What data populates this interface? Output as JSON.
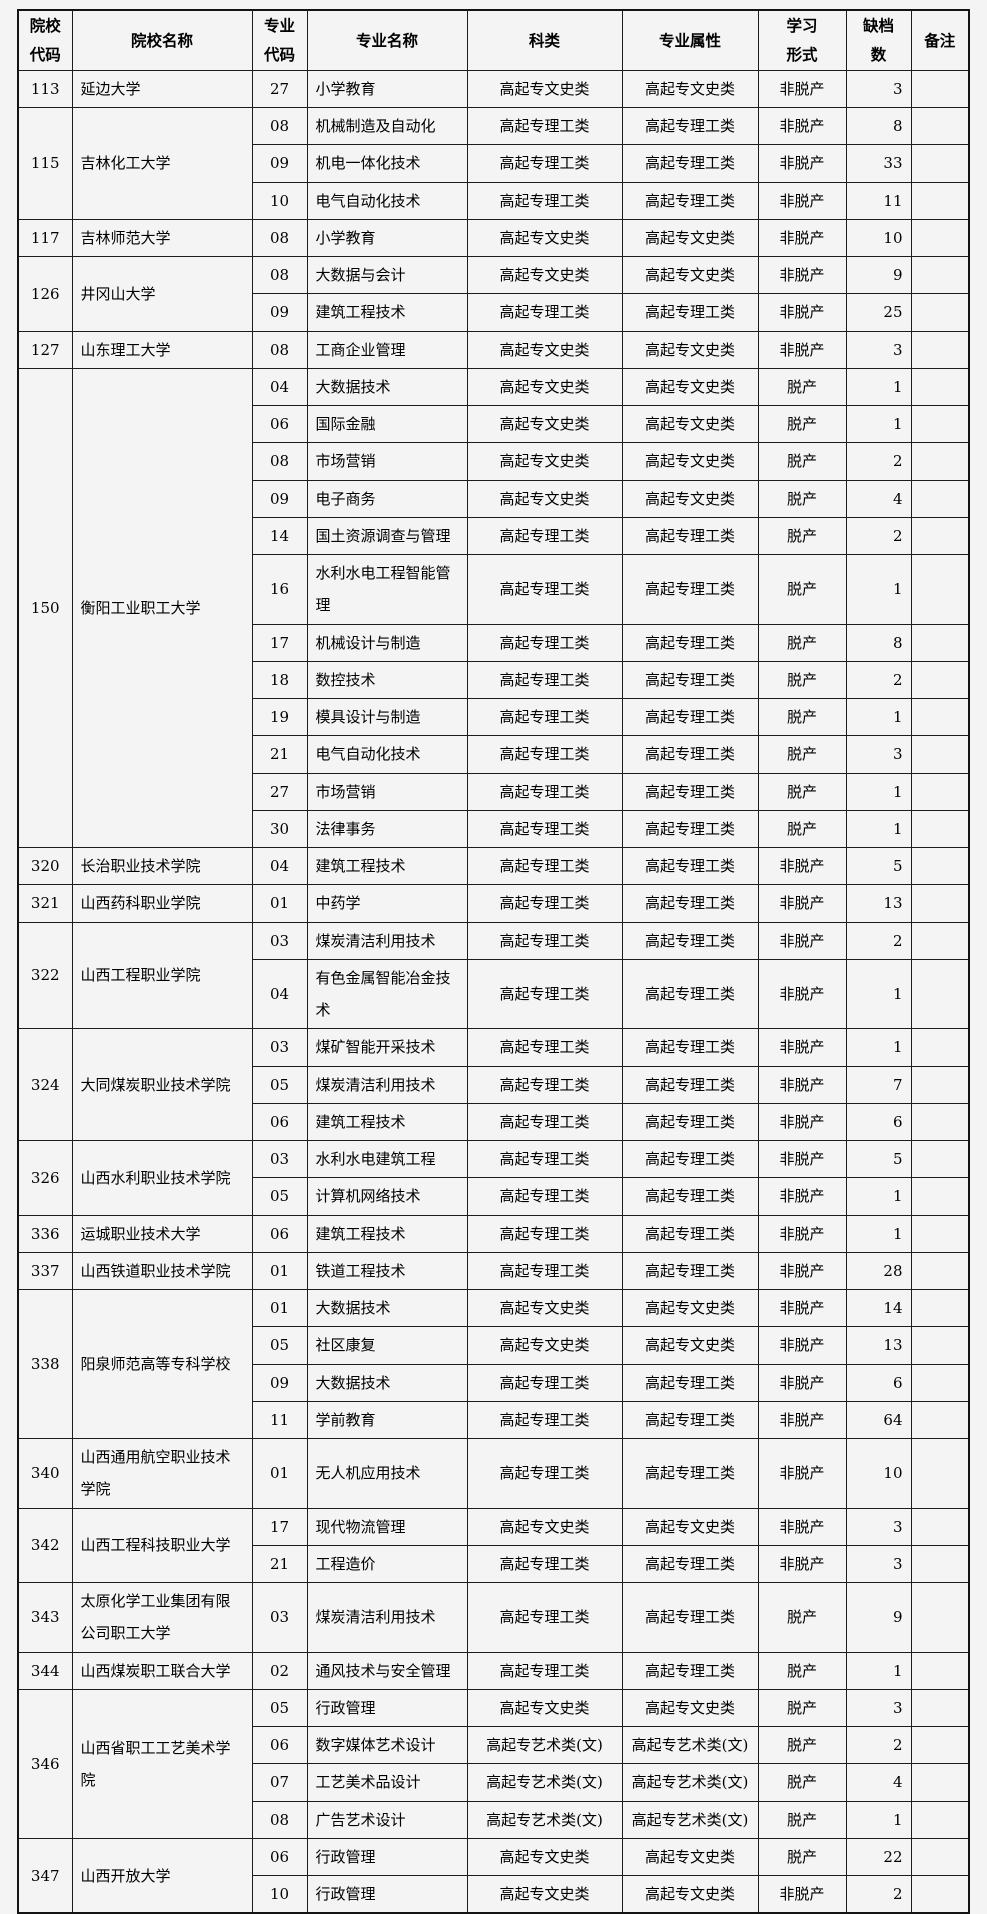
{
  "page": {
    "background_color": "#f4f4f4",
    "border_color": "#1c1c1c",
    "text_color": "#000000"
  },
  "table": {
    "columns": [
      {
        "key": "institution_code",
        "label": "院校\n代码",
        "align": "center"
      },
      {
        "key": "institution_name",
        "label": "院校名称",
        "align": "left"
      },
      {
        "key": "major_code",
        "label": "专业\n代码",
        "align": "center"
      },
      {
        "key": "major_name",
        "label": "专业名称",
        "align": "left"
      },
      {
        "key": "category",
        "label": "科类",
        "align": "center"
      },
      {
        "key": "attribute",
        "label": "专业属性",
        "align": "center"
      },
      {
        "key": "study_form",
        "label": "学习\n形式",
        "align": "center"
      },
      {
        "key": "shortage",
        "label": "缺档\n数",
        "align": "right"
      },
      {
        "key": "remark",
        "label": "备注",
        "align": "center"
      }
    ],
    "groups": [
      {
        "code": "113",
        "name": "延边大学",
        "rows": [
          {
            "major_code": "27",
            "major_name": "小学教育",
            "category": "高起专文史类",
            "attribute": "高起专文史类",
            "study_form": "非脱产",
            "shortage": "3",
            "remark": ""
          }
        ]
      },
      {
        "code": "115",
        "name": "吉林化工大学",
        "rows": [
          {
            "major_code": "08",
            "major_name": "机械制造及自动化",
            "category": "高起专理工类",
            "attribute": "高起专理工类",
            "study_form": "非脱产",
            "shortage": "8",
            "remark": ""
          },
          {
            "major_code": "09",
            "major_name": "机电一体化技术",
            "category": "高起专理工类",
            "attribute": "高起专理工类",
            "study_form": "非脱产",
            "shortage": "33",
            "remark": ""
          },
          {
            "major_code": "10",
            "major_name": "电气自动化技术",
            "category": "高起专理工类",
            "attribute": "高起专理工类",
            "study_form": "非脱产",
            "shortage": "11",
            "remark": ""
          }
        ]
      },
      {
        "code": "117",
        "name": "吉林师范大学",
        "rows": [
          {
            "major_code": "08",
            "major_name": "小学教育",
            "category": "高起专文史类",
            "attribute": "高起专文史类",
            "study_form": "非脱产",
            "shortage": "10",
            "remark": ""
          }
        ]
      },
      {
        "code": "126",
        "name": "井冈山大学",
        "rows": [
          {
            "major_code": "08",
            "major_name": "大数据与会计",
            "category": "高起专文史类",
            "attribute": "高起专文史类",
            "study_form": "非脱产",
            "shortage": "9",
            "remark": ""
          },
          {
            "major_code": "09",
            "major_name": "建筑工程技术",
            "category": "高起专理工类",
            "attribute": "高起专理工类",
            "study_form": "非脱产",
            "shortage": "25",
            "remark": ""
          }
        ]
      },
      {
        "code": "127",
        "name": "山东理工大学",
        "rows": [
          {
            "major_code": "08",
            "major_name": "工商企业管理",
            "category": "高起专文史类",
            "attribute": "高起专文史类",
            "study_form": "非脱产",
            "shortage": "3",
            "remark": ""
          }
        ]
      },
      {
        "code": "150",
        "name": "衡阳工业职工大学",
        "rows": [
          {
            "major_code": "04",
            "major_name": "大数据技术",
            "category": "高起专文史类",
            "attribute": "高起专文史类",
            "study_form": "脱产",
            "shortage": "1",
            "remark": ""
          },
          {
            "major_code": "06",
            "major_name": "国际金融",
            "category": "高起专文史类",
            "attribute": "高起专文史类",
            "study_form": "脱产",
            "shortage": "1",
            "remark": ""
          },
          {
            "major_code": "08",
            "major_name": "市场营销",
            "category": "高起专文史类",
            "attribute": "高起专文史类",
            "study_form": "脱产",
            "shortage": "2",
            "remark": ""
          },
          {
            "major_code": "09",
            "major_name": "电子商务",
            "category": "高起专文史类",
            "attribute": "高起专文史类",
            "study_form": "脱产",
            "shortage": "4",
            "remark": ""
          },
          {
            "major_code": "14",
            "major_name": "国土资源调查与管理",
            "category": "高起专理工类",
            "attribute": "高起专理工类",
            "study_form": "脱产",
            "shortage": "2",
            "remark": ""
          },
          {
            "major_code": "16",
            "major_name": "水利水电工程智能管理",
            "category": "高起专理工类",
            "attribute": "高起专理工类",
            "study_form": "脱产",
            "shortage": "1",
            "remark": ""
          },
          {
            "major_code": "17",
            "major_name": "机械设计与制造",
            "category": "高起专理工类",
            "attribute": "高起专理工类",
            "study_form": "脱产",
            "shortage": "8",
            "remark": ""
          },
          {
            "major_code": "18",
            "major_name": "数控技术",
            "category": "高起专理工类",
            "attribute": "高起专理工类",
            "study_form": "脱产",
            "shortage": "2",
            "remark": ""
          },
          {
            "major_code": "19",
            "major_name": "模具设计与制造",
            "category": "高起专理工类",
            "attribute": "高起专理工类",
            "study_form": "脱产",
            "shortage": "1",
            "remark": ""
          },
          {
            "major_code": "21",
            "major_name": "电气自动化技术",
            "category": "高起专理工类",
            "attribute": "高起专理工类",
            "study_form": "脱产",
            "shortage": "3",
            "remark": ""
          },
          {
            "major_code": "27",
            "major_name": "市场营销",
            "category": "高起专理工类",
            "attribute": "高起专理工类",
            "study_form": "脱产",
            "shortage": "1",
            "remark": ""
          },
          {
            "major_code": "30",
            "major_name": "法律事务",
            "category": "高起专理工类",
            "attribute": "高起专理工类",
            "study_form": "脱产",
            "shortage": "1",
            "remark": ""
          }
        ]
      },
      {
        "code": "320",
        "name": "长治职业技术学院",
        "rows": [
          {
            "major_code": "04",
            "major_name": "建筑工程技术",
            "category": "高起专理工类",
            "attribute": "高起专理工类",
            "study_form": "非脱产",
            "shortage": "5",
            "remark": ""
          }
        ]
      },
      {
        "code": "321",
        "name": "山西药科职业学院",
        "rows": [
          {
            "major_code": "01",
            "major_name": "中药学",
            "category": "高起专理工类",
            "attribute": "高起专理工类",
            "study_form": "非脱产",
            "shortage": "13",
            "remark": ""
          }
        ]
      },
      {
        "code": "322",
        "name": "山西工程职业学院",
        "rows": [
          {
            "major_code": "03",
            "major_name": "煤炭清洁利用技术",
            "category": "高起专理工类",
            "attribute": "高起专理工类",
            "study_form": "非脱产",
            "shortage": "2",
            "remark": ""
          },
          {
            "major_code": "04",
            "major_name": "有色金属智能冶金技术",
            "category": "高起专理工类",
            "attribute": "高起专理工类",
            "study_form": "非脱产",
            "shortage": "1",
            "remark": ""
          }
        ]
      },
      {
        "code": "324",
        "name": "大同煤炭职业技术学院",
        "rows": [
          {
            "major_code": "03",
            "major_name": "煤矿智能开采技术",
            "category": "高起专理工类",
            "attribute": "高起专理工类",
            "study_form": "非脱产",
            "shortage": "1",
            "remark": ""
          },
          {
            "major_code": "05",
            "major_name": "煤炭清洁利用技术",
            "category": "高起专理工类",
            "attribute": "高起专理工类",
            "study_form": "非脱产",
            "shortage": "7",
            "remark": ""
          },
          {
            "major_code": "06",
            "major_name": "建筑工程技术",
            "category": "高起专理工类",
            "attribute": "高起专理工类",
            "study_form": "非脱产",
            "shortage": "6",
            "remark": ""
          }
        ]
      },
      {
        "code": "326",
        "name": "山西水利职业技术学院",
        "rows": [
          {
            "major_code": "03",
            "major_name": "水利水电建筑工程",
            "category": "高起专理工类",
            "attribute": "高起专理工类",
            "study_form": "非脱产",
            "shortage": "5",
            "remark": ""
          },
          {
            "major_code": "05",
            "major_name": "计算机网络技术",
            "category": "高起专理工类",
            "attribute": "高起专理工类",
            "study_form": "非脱产",
            "shortage": "1",
            "remark": ""
          }
        ]
      },
      {
        "code": "336",
        "name": "运城职业技术大学",
        "rows": [
          {
            "major_code": "06",
            "major_name": "建筑工程技术",
            "category": "高起专理工类",
            "attribute": "高起专理工类",
            "study_form": "非脱产",
            "shortage": "1",
            "remark": ""
          }
        ]
      },
      {
        "code": "337",
        "name": "山西铁道职业技术学院",
        "rows": [
          {
            "major_code": "01",
            "major_name": "铁道工程技术",
            "category": "高起专理工类",
            "attribute": "高起专理工类",
            "study_form": "非脱产",
            "shortage": "28",
            "remark": ""
          }
        ]
      },
      {
        "code": "338",
        "name": "阳泉师范高等专科学校",
        "rows": [
          {
            "major_code": "01",
            "major_name": "大数据技术",
            "category": "高起专文史类",
            "attribute": "高起专文史类",
            "study_form": "非脱产",
            "shortage": "14",
            "remark": ""
          },
          {
            "major_code": "05",
            "major_name": "社区康复",
            "category": "高起专文史类",
            "attribute": "高起专文史类",
            "study_form": "非脱产",
            "shortage": "13",
            "remark": ""
          },
          {
            "major_code": "09",
            "major_name": "大数据技术",
            "category": "高起专理工类",
            "attribute": "高起专理工类",
            "study_form": "非脱产",
            "shortage": "6",
            "remark": ""
          },
          {
            "major_code": "11",
            "major_name": "学前教育",
            "category": "高起专理工类",
            "attribute": "高起专理工类",
            "study_form": "非脱产",
            "shortage": "64",
            "remark": ""
          }
        ]
      },
      {
        "code": "340",
        "name": "山西通用航空职业技术学院",
        "rows": [
          {
            "major_code": "01",
            "major_name": "无人机应用技术",
            "category": "高起专理工类",
            "attribute": "高起专理工类",
            "study_form": "非脱产",
            "shortage": "10",
            "remark": ""
          }
        ]
      },
      {
        "code": "342",
        "name": "山西工程科技职业大学",
        "rows": [
          {
            "major_code": "17",
            "major_name": "现代物流管理",
            "category": "高起专文史类",
            "attribute": "高起专文史类",
            "study_form": "非脱产",
            "shortage": "3",
            "remark": ""
          },
          {
            "major_code": "21",
            "major_name": "工程造价",
            "category": "高起专理工类",
            "attribute": "高起专理工类",
            "study_form": "非脱产",
            "shortage": "3",
            "remark": ""
          }
        ]
      },
      {
        "code": "343",
        "name": "太原化学工业集团有限公司职工大学",
        "rows": [
          {
            "major_code": "03",
            "major_name": "煤炭清洁利用技术",
            "category": "高起专理工类",
            "attribute": "高起专理工类",
            "study_form": "脱产",
            "shortage": "9",
            "remark": ""
          }
        ]
      },
      {
        "code": "344",
        "name": "山西煤炭职工联合大学",
        "rows": [
          {
            "major_code": "02",
            "major_name": "通风技术与安全管理",
            "category": "高起专理工类",
            "attribute": "高起专理工类",
            "study_form": "脱产",
            "shortage": "1",
            "remark": ""
          }
        ]
      },
      {
        "code": "346",
        "name": "山西省职工工艺美术学院",
        "rows": [
          {
            "major_code": "05",
            "major_name": "行政管理",
            "category": "高起专文史类",
            "attribute": "高起专文史类",
            "study_form": "脱产",
            "shortage": "3",
            "remark": ""
          },
          {
            "major_code": "06",
            "major_name": "数字媒体艺术设计",
            "category": "高起专艺术类(文)",
            "attribute": "高起专艺术类(文)",
            "study_form": "脱产",
            "shortage": "2",
            "remark": ""
          },
          {
            "major_code": "07",
            "major_name": "工艺美术品设计",
            "category": "高起专艺术类(文)",
            "attribute": "高起专艺术类(文)",
            "study_form": "脱产",
            "shortage": "4",
            "remark": ""
          },
          {
            "major_code": "08",
            "major_name": "广告艺术设计",
            "category": "高起专艺术类(文)",
            "attribute": "高起专艺术类(文)",
            "study_form": "脱产",
            "shortage": "1",
            "remark": ""
          }
        ]
      },
      {
        "code": "347",
        "name": "山西开放大学",
        "rows": [
          {
            "major_code": "06",
            "major_name": "行政管理",
            "category": "高起专文史类",
            "attribute": "高起专文史类",
            "study_form": "脱产",
            "shortage": "22",
            "remark": ""
          },
          {
            "major_code": "10",
            "major_name": "行政管理",
            "category": "高起专文史类",
            "attribute": "高起专文史类",
            "study_form": "非脱产",
            "shortage": "2",
            "remark": ""
          }
        ]
      }
    ]
  }
}
